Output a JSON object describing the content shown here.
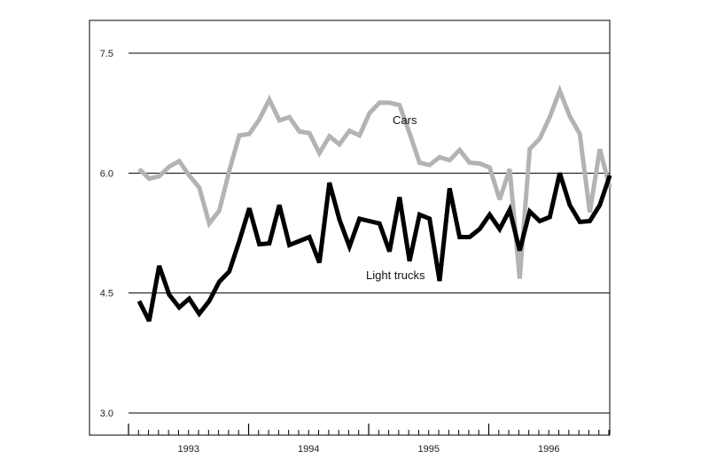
{
  "chart_data": {
    "type": "line",
    "title": "",
    "xlabel": "",
    "ylabel": "",
    "ylim": [
      3.0,
      7.5
    ],
    "y_ticks": [
      3.0,
      4.5,
      6.0,
      7.5
    ],
    "y_tick_labels": [
      "3.0",
      "4.5",
      "6.0",
      "7.5"
    ],
    "x_range": [
      1992.92,
      1996.92
    ],
    "x_tick_labels": [
      {
        "label": "1993",
        "x": 1993.42
      },
      {
        "label": "1994",
        "x": 1994.42
      },
      {
        "label": "1995",
        "x": 1995.42
      },
      {
        "label": "1996",
        "x": 1996.42
      }
    ],
    "year_boundaries": [
      1993.92,
      1994.92,
      1995.92
    ],
    "grid": "horizontal",
    "series": [
      {
        "name": "Cars",
        "color": "#b3b3b3",
        "values": [
          6.05,
          5.93,
          5.96,
          6.08,
          6.15,
          5.97,
          5.82,
          5.37,
          5.53,
          6.03,
          6.47,
          6.49,
          6.67,
          6.92,
          6.66,
          6.7,
          6.52,
          6.5,
          6.25,
          6.46,
          6.36,
          6.53,
          6.47,
          6.75,
          6.88,
          6.88,
          6.85,
          6.5,
          6.13,
          6.1,
          6.2,
          6.16,
          6.29,
          6.13,
          6.12,
          6.07,
          5.67,
          6.05,
          4.68,
          6.3,
          6.43,
          6.7,
          7.03,
          6.71,
          6.49,
          5.51,
          6.3,
          5.82
        ]
      },
      {
        "name": "Light trucks",
        "color": "#000000",
        "values": [
          4.4,
          4.15,
          4.84,
          4.48,
          4.32,
          4.43,
          4.24,
          4.4,
          4.64,
          4.77,
          5.15,
          5.56,
          5.11,
          5.12,
          5.6,
          5.1,
          5.15,
          5.2,
          4.88,
          5.88,
          5.42,
          5.08,
          5.43,
          5.4,
          5.37,
          5.02,
          5.7,
          4.9,
          5.48,
          5.43,
          4.65,
          5.81,
          5.2,
          5.2,
          5.3,
          5.48,
          5.3,
          5.54,
          5.03,
          5.52,
          5.4,
          5.45,
          6.0,
          5.6,
          5.39,
          5.4,
          5.6,
          5.97
        ]
      }
    ],
    "annotations": [
      {
        "text": "Cars",
        "series": "Cars"
      },
      {
        "text": "Light trucks",
        "series": "Light trucks"
      }
    ]
  }
}
